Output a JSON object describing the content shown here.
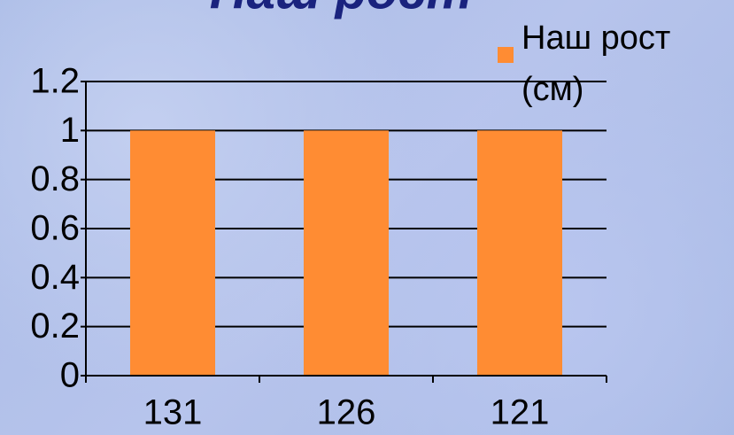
{
  "chart_data": {
    "type": "bar",
    "title": "Наш рост",
    "categories": [
      "131",
      "126",
      "121"
    ],
    "series": [
      {
        "name": "Наш рост (см)",
        "color": "#ff8c33",
        "values": [
          1,
          1,
          1
        ]
      }
    ],
    "ylim": [
      0,
      1.2
    ],
    "yticks": [
      0,
      0.2,
      0.4,
      0.6,
      0.8,
      1,
      1.2
    ],
    "grid": true,
    "legend": "top-right"
  }
}
